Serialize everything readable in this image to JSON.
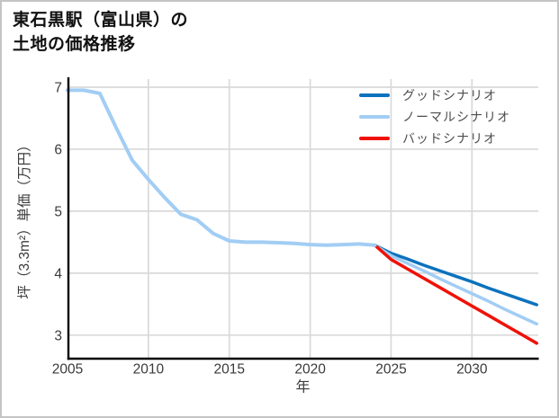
{
  "header": {
    "title_line1": "東石黒駅（富山県）の",
    "title_line2": "土地の価格推移"
  },
  "colors": {
    "good": "#0b72bd",
    "normal": "#a2cdf4",
    "bad": "#f01108",
    "historical": "#a2cdf4",
    "grid": "#d9d9d9",
    "axis": "#000000",
    "tick_text": "#3a3a3a",
    "axis_label_text": "#3a3a3a",
    "title_text": "#111111",
    "legend_text": "#4d4d4d",
    "background": "#ffffff",
    "frame_border": "#c4c4c4"
  },
  "legend": {
    "position": "top-right",
    "entries": [
      {
        "key": "good",
        "label": "グッドシナリオ",
        "color": "#0b72bd"
      },
      {
        "key": "normal",
        "label": "ノーマルシナリオ",
        "color": "#a2cdf4"
      },
      {
        "key": "bad",
        "label": "バッドシナリオ",
        "color": "#f01108"
      }
    ]
  },
  "chart_data": {
    "type": "line",
    "title": "東石黒駅（富山県）の土地の価格推移",
    "xlabel": "年",
    "ylabel": "坪（3.3m²）単価（万円）",
    "x_ticks": [
      2005,
      2010,
      2015,
      2020,
      2025,
      2030
    ],
    "y_ticks": [
      7,
      6,
      5,
      4,
      3
    ],
    "x_range": [
      2005,
      2034.1
    ],
    "y_range": [
      2.62,
      7.13
    ],
    "grid": true,
    "legend_position": "top-right",
    "series": [
      {
        "key": "historical",
        "color": "#a2cdf4",
        "x": [
          2005,
          2006,
          2007,
          2008,
          2009,
          2010,
          2011,
          2012,
          2013,
          2014,
          2015,
          2016,
          2017,
          2018,
          2019,
          2020,
          2021,
          2022,
          2023,
          2024
        ],
        "values": [
          6.95,
          6.95,
          6.9,
          6.35,
          5.82,
          5.51,
          5.22,
          4.95,
          4.86,
          4.64,
          4.52,
          4.5,
          4.5,
          4.49,
          4.48,
          4.46,
          4.45,
          4.46,
          4.47,
          4.45
        ]
      },
      {
        "key": "good",
        "name": "グッドシナリオ",
        "color": "#0b72bd",
        "x": [
          2024,
          2025,
          2026,
          2027,
          2028,
          2029,
          2030,
          2031,
          2032,
          2033,
          2034
        ],
        "values": [
          4.45,
          4.32,
          4.23,
          4.13,
          4.04,
          3.95,
          3.86,
          3.76,
          3.67,
          3.58,
          3.49
        ]
      },
      {
        "key": "normal",
        "name": "ノーマルシナリオ",
        "color": "#a2cdf4",
        "x": [
          2024,
          2025,
          2026,
          2027,
          2028,
          2029,
          2030,
          2031,
          2032,
          2033,
          2034
        ],
        "values": [
          4.45,
          4.28,
          4.16,
          4.04,
          3.91,
          3.79,
          3.67,
          3.55,
          3.42,
          3.3,
          3.18
        ]
      },
      {
        "key": "bad",
        "name": "バッドシナリオ",
        "color": "#f01108",
        "x": [
          2024,
          2025,
          2026,
          2027,
          2028,
          2029,
          2030,
          2031,
          2032,
          2033,
          2034
        ],
        "values": [
          4.45,
          4.22,
          4.07,
          3.92,
          3.77,
          3.62,
          3.47,
          3.32,
          3.17,
          3.02,
          2.87
        ]
      }
    ]
  }
}
